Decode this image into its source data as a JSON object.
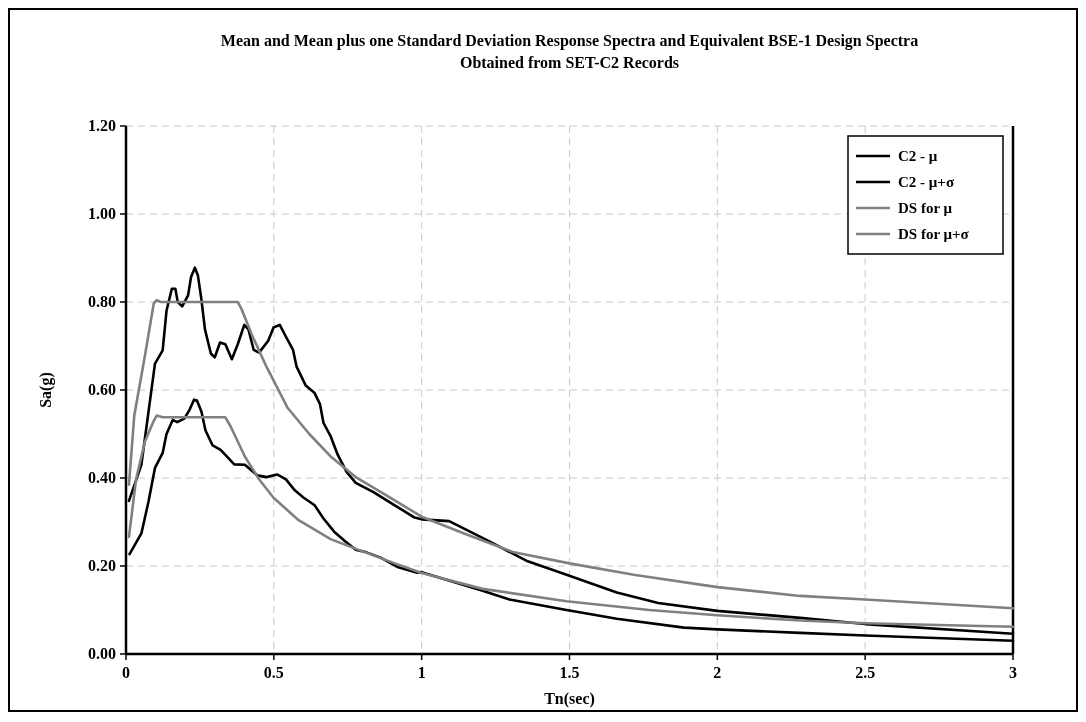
{
  "chart_data": {
    "type": "line",
    "title": "Mean and Mean plus one Standard Deviation Response Spectra and Equivalent BSE-1 Design Spectra Obtained from SET-C2 Records",
    "xlabel": "Tn(sec)",
    "ylabel": "Sa(g)",
    "xlim": [
      0,
      3
    ],
    "xticks": [
      0,
      0.5,
      1,
      1.5,
      2,
      2.5,
      3
    ],
    "ylim": [
      0,
      1.2
    ],
    "yticks": [
      {
        "value": 0,
        "label": "0.00"
      },
      {
        "value": 0.2,
        "label": "0.20"
      },
      {
        "value": 0.4,
        "label": "0.40"
      },
      {
        "value": 0.6,
        "label": "0.60"
      },
      {
        "value": 0.8,
        "label": "0.80"
      },
      {
        "value": 1,
        "label": "1.00"
      },
      {
        "value": 1.2,
        "label": "1.20"
      }
    ],
    "grid": true,
    "legend": "top right",
    "line_style": "solid",
    "marker": "none",
    "series": [
      {
        "name": "C2 - μ",
        "color": "#000000",
        "x": [
          0.012,
          0.052,
          0.076,
          0.098,
          0.124,
          0.137,
          0.158,
          0.173,
          0.197,
          0.215,
          0.23,
          0.24,
          0.255,
          0.269,
          0.293,
          0.32,
          0.341,
          0.366,
          0.402,
          0.444,
          0.475,
          0.511,
          0.541,
          0.571,
          0.601,
          0.638,
          0.668,
          0.704,
          0.74,
          0.777,
          0.813,
          0.861,
          0.921,
          0.982,
          1.0,
          1.206,
          1.297,
          1.49,
          1.66,
          1.887,
          2.0,
          2.28,
          2.5,
          3.0
        ],
        "values": [
          0.227,
          0.274,
          0.346,
          0.423,
          0.457,
          0.5,
          0.532,
          0.527,
          0.535,
          0.555,
          0.578,
          0.576,
          0.551,
          0.508,
          0.474,
          0.464,
          0.449,
          0.431,
          0.43,
          0.406,
          0.402,
          0.408,
          0.397,
          0.372,
          0.355,
          0.338,
          0.308,
          0.278,
          0.257,
          0.237,
          0.231,
          0.219,
          0.197,
          0.185,
          0.186,
          0.144,
          0.124,
          0.1,
          0.08,
          0.06,
          0.056,
          0.048,
          0.042,
          0.03
        ]
      },
      {
        "name": "C2 - μ+σ",
        "color": "#000000",
        "x": [
          0.01,
          0.052,
          0.098,
          0.124,
          0.137,
          0.155,
          0.167,
          0.175,
          0.19,
          0.21,
          0.22,
          0.233,
          0.243,
          0.255,
          0.267,
          0.287,
          0.3,
          0.318,
          0.336,
          0.358,
          0.378,
          0.4,
          0.414,
          0.432,
          0.45,
          0.481,
          0.499,
          0.52,
          0.541,
          0.565,
          0.577,
          0.608,
          0.638,
          0.656,
          0.668,
          0.692,
          0.716,
          0.746,
          0.777,
          0.837,
          0.909,
          0.976,
          1.0,
          1.093,
          1.229,
          1.354,
          1.49,
          1.66,
          1.8,
          2.0,
          2.28,
          2.5,
          3.0
        ],
        "values": [
          0.348,
          0.43,
          0.66,
          0.69,
          0.78,
          0.83,
          0.83,
          0.8,
          0.79,
          0.815,
          0.857,
          0.878,
          0.861,
          0.806,
          0.738,
          0.683,
          0.674,
          0.708,
          0.704,
          0.67,
          0.704,
          0.748,
          0.738,
          0.691,
          0.685,
          0.712,
          0.742,
          0.748,
          0.721,
          0.691,
          0.653,
          0.61,
          0.593,
          0.568,
          0.525,
          0.495,
          0.453,
          0.414,
          0.389,
          0.368,
          0.338,
          0.31,
          0.306,
          0.302,
          0.256,
          0.212,
          0.18,
          0.14,
          0.116,
          0.098,
          0.082,
          0.068,
          0.046
        ]
      },
      {
        "name": "DS for μ",
        "color": "#808080",
        "x": [
          0.01,
          0.034,
          0.064,
          0.094,
          0.104,
          0.124,
          0.336,
          0.354,
          0.402,
          0.45,
          0.499,
          0.584,
          0.692,
          0.789,
          0.909,
          1.0,
          1.206,
          1.49,
          1.77,
          2.0,
          2.28,
          2.5,
          3.0
        ],
        "values": [
          0.266,
          0.397,
          0.483,
          0.53,
          0.542,
          0.538,
          0.538,
          0.517,
          0.449,
          0.397,
          0.355,
          0.304,
          0.261,
          0.236,
          0.206,
          0.184,
          0.148,
          0.12,
          0.1,
          0.088,
          0.076,
          0.07,
          0.062
        ]
      },
      {
        "name": "DS for μ+σ",
        "color": "#808080",
        "x": [
          0.01,
          0.028,
          0.064,
          0.094,
          0.104,
          0.118,
          0.378,
          0.39,
          0.426,
          0.475,
          0.547,
          0.62,
          0.692,
          0.777,
          0.885,
          1.0,
          1.15,
          1.308,
          1.5,
          1.717,
          2.0,
          2.28,
          2.5,
          3.0
        ],
        "values": [
          0.385,
          0.542,
          0.678,
          0.797,
          0.804,
          0.8,
          0.8,
          0.785,
          0.725,
          0.653,
          0.559,
          0.5,
          0.449,
          0.402,
          0.359,
          0.312,
          0.272,
          0.232,
          0.206,
          0.18,
          0.152,
          0.132,
          0.124,
          0.104
        ]
      }
    ]
  }
}
